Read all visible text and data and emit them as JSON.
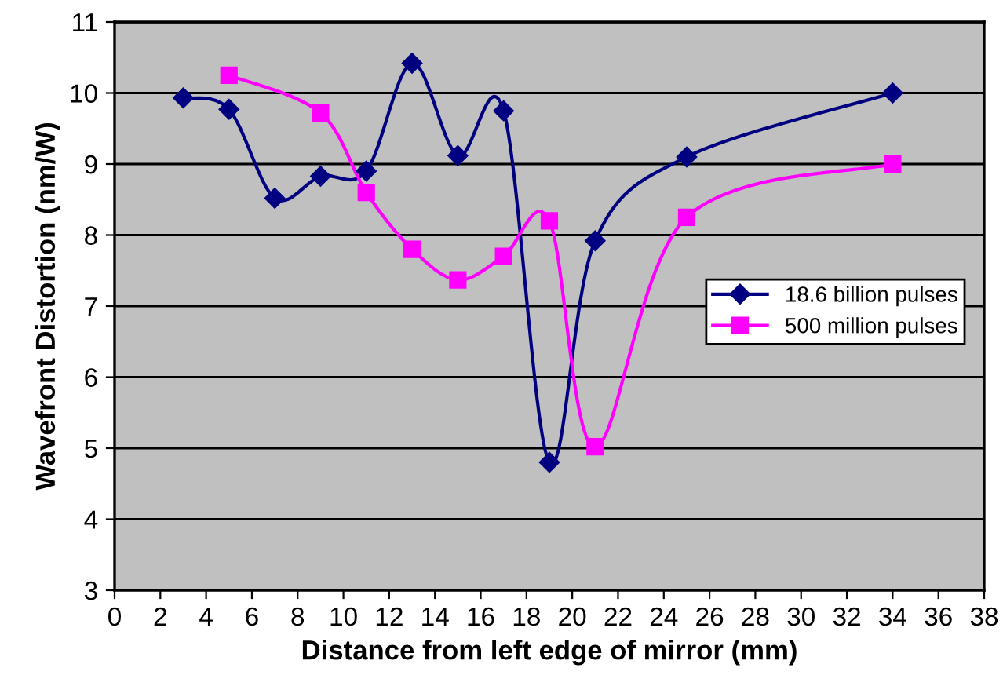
{
  "chart_data": {
    "type": "line",
    "xlabel": "Distance from left edge of mirror (mm)",
    "ylabel": "Wavefront Distortion (nm/W)",
    "xlim": [
      0,
      38
    ],
    "xticks": [
      0,
      2,
      4,
      6,
      8,
      10,
      12,
      14,
      16,
      18,
      20,
      22,
      24,
      26,
      28,
      30,
      32,
      34,
      36,
      38
    ],
    "ylim": [
      3,
      11
    ],
    "yticks": [
      3,
      4,
      5,
      6,
      7,
      8,
      9,
      10,
      11
    ],
    "grid": "y",
    "legend": "right",
    "line_style": "solid",
    "series": [
      {
        "name": "18.6 billion pulses",
        "color": "#000080",
        "marker": "diamond",
        "x": [
          3,
          5,
          7,
          9,
          11,
          13,
          15,
          17,
          19,
          21,
          25,
          34
        ],
        "values": [
          9.93,
          9.77,
          8.52,
          8.83,
          8.9,
          10.42,
          9.12,
          9.75,
          4.8,
          7.92,
          9.1,
          10.0
        ]
      },
      {
        "name": "500 million pulses",
        "color": "#ff00ff",
        "marker": "square",
        "x": [
          5,
          9,
          11,
          13,
          15,
          17,
          19,
          21,
          25,
          34
        ],
        "values": [
          10.25,
          9.72,
          8.6,
          7.8,
          7.37,
          7.7,
          8.2,
          5.02,
          8.25,
          9.0
        ]
      }
    ]
  }
}
